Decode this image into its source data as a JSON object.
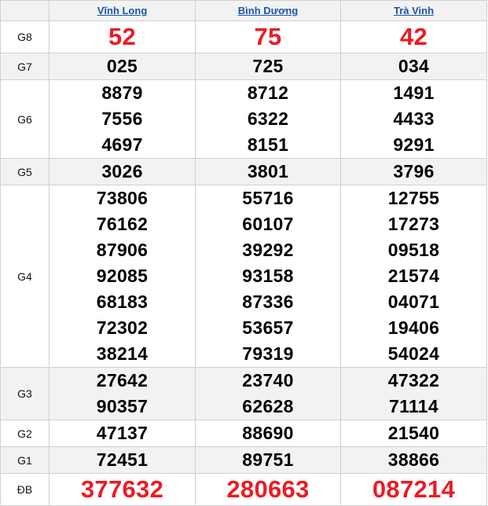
{
  "header": {
    "provinces": [
      "Vĩnh Long",
      "Bình Dương",
      "Trà Vinh"
    ]
  },
  "colors": {
    "highlight": "#ea1c24",
    "link": "#1a56a8",
    "stripe": "#f2f2f2"
  },
  "rows": [
    {
      "label": "G8",
      "highlight": true,
      "values": [
        [
          "52"
        ],
        [
          "75"
        ],
        [
          "42"
        ]
      ]
    },
    {
      "label": "G7",
      "values": [
        [
          "025"
        ],
        [
          "725"
        ],
        [
          "034"
        ]
      ]
    },
    {
      "label": "G6",
      "values": [
        [
          "8879",
          "7556",
          "4697"
        ],
        [
          "8712",
          "6322",
          "8151"
        ],
        [
          "1491",
          "4433",
          "9291"
        ]
      ]
    },
    {
      "label": "G5",
      "values": [
        [
          "3026"
        ],
        [
          "3801"
        ],
        [
          "3796"
        ]
      ]
    },
    {
      "label": "G4",
      "values": [
        [
          "73806",
          "76162",
          "87906",
          "92085",
          "68183",
          "72302",
          "38214"
        ],
        [
          "55716",
          "60107",
          "39292",
          "93158",
          "87336",
          "53657",
          "79319"
        ],
        [
          "12755",
          "17273",
          "09518",
          "21574",
          "04071",
          "19406",
          "54024"
        ]
      ]
    },
    {
      "label": "G3",
      "values": [
        [
          "27642",
          "90357"
        ],
        [
          "23740",
          "62628"
        ],
        [
          "47322",
          "71114"
        ]
      ]
    },
    {
      "label": "G2",
      "values": [
        [
          "47137"
        ],
        [
          "88690"
        ],
        [
          "21540"
        ]
      ]
    },
    {
      "label": "G1",
      "values": [
        [
          "72451"
        ],
        [
          "89751"
        ],
        [
          "38866"
        ]
      ]
    },
    {
      "label": "ĐB",
      "highlight": true,
      "values": [
        [
          "377632"
        ],
        [
          "280663"
        ],
        [
          "087214"
        ]
      ]
    }
  ]
}
